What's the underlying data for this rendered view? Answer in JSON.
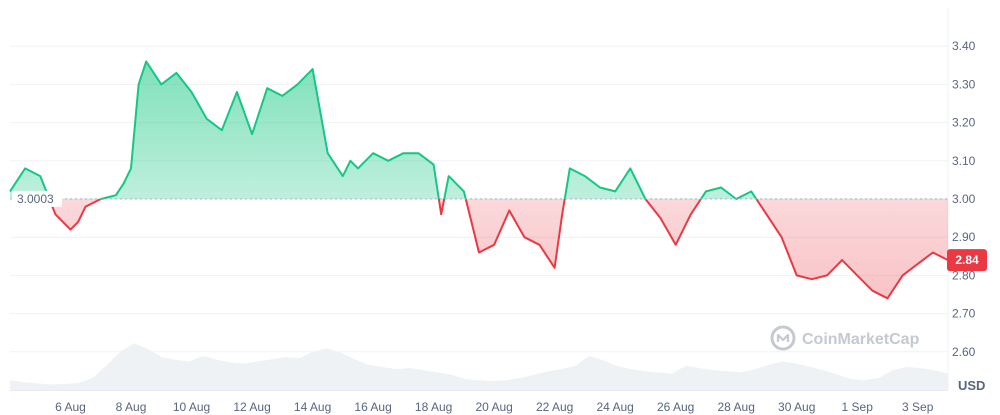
{
  "chart_data": {
    "type": "area",
    "unit_label": "USD",
    "watermark": "CoinMarketCap",
    "baseline": {
      "value": 3.0003,
      "label": "3.0003"
    },
    "current": {
      "value": 2.84,
      "label": "2.84"
    },
    "ylim": [
      2.5,
      3.5
    ],
    "xlim": [
      "2024-08-04",
      "2024-09-04"
    ],
    "y_ticks": [
      "2.60",
      "2.70",
      "2.80",
      "2.90",
      "3.00",
      "3.10",
      "3.20",
      "3.30",
      "3.40"
    ],
    "x_ticks": [
      "6 Aug",
      "8 Aug",
      "10 Aug",
      "12 Aug",
      "14 Aug",
      "16 Aug",
      "18 Aug",
      "20 Aug",
      "22 Aug",
      "24 Aug",
      "26 Aug",
      "28 Aug",
      "30 Aug",
      "1 Sep",
      "3 Sep"
    ],
    "grid": true,
    "colors": {
      "up": "#16c784",
      "down": "#ea3943",
      "grid": "#eff2f5",
      "volume": "#eff2f5",
      "text": "#58667e"
    },
    "series": [
      {
        "x": [
          "2024-08-04",
          "2024-08-04T12:00",
          "2024-08-05",
          "2024-08-05T12:00",
          "2024-08-06",
          "2024-08-06T06:00",
          "2024-08-06T12:00",
          "2024-08-07",
          "2024-08-07T12:00",
          "2024-08-07T18:00",
          "2024-08-08",
          "2024-08-08T06:00",
          "2024-08-08T12:00",
          "2024-08-09",
          "2024-08-09T12:00",
          "2024-08-10",
          "2024-08-10T12:00",
          "2024-08-11",
          "2024-08-11T12:00",
          "2024-08-12",
          "2024-08-12T12:00",
          "2024-08-13",
          "2024-08-13T12:00",
          "2024-08-14",
          "2024-08-14T12:00",
          "2024-08-15",
          "2024-08-15T06:00",
          "2024-08-15T12:00",
          "2024-08-16",
          "2024-08-16T12:00",
          "2024-08-17",
          "2024-08-17T12:00",
          "2024-08-18",
          "2024-08-18T06:00",
          "2024-08-18T12:00",
          "2024-08-19",
          "2024-08-19T12:00",
          "2024-08-20",
          "2024-08-20T12:00",
          "2024-08-21",
          "2024-08-21T12:00",
          "2024-08-22",
          "2024-08-22T06:00",
          "2024-08-22T12:00",
          "2024-08-23",
          "2024-08-23T12:00",
          "2024-08-24",
          "2024-08-24T12:00",
          "2024-08-25",
          "2024-08-25T12:00",
          "2024-08-26",
          "2024-08-26T12:00",
          "2024-08-27",
          "2024-08-27T12:00",
          "2024-08-28",
          "2024-08-28T12:00",
          "2024-08-29",
          "2024-08-29T12:00",
          "2024-08-30",
          "2024-08-30T12:00",
          "2024-08-31",
          "2024-08-31T12:00",
          "2024-09-01",
          "2024-09-01T12:00",
          "2024-09-02",
          "2024-09-02T12:00",
          "2024-09-03",
          "2024-09-03T12:00",
          "2024-09-04"
        ],
        "values": [
          3.02,
          3.08,
          3.06,
          2.96,
          2.92,
          2.94,
          2.98,
          3.0,
          3.01,
          3.04,
          3.08,
          3.3,
          3.36,
          3.3,
          3.33,
          3.28,
          3.21,
          3.18,
          3.28,
          3.17,
          3.29,
          3.27,
          3.3,
          3.34,
          3.12,
          3.06,
          3.1,
          3.08,
          3.12,
          3.1,
          3.12,
          3.12,
          3.09,
          2.96,
          3.06,
          3.02,
          2.86,
          2.88,
          2.97,
          2.9,
          2.88,
          2.82,
          2.96,
          3.08,
          3.06,
          3.03,
          3.02,
          3.08,
          3.0,
          2.95,
          2.88,
          2.96,
          3.02,
          3.03,
          3.0,
          3.02,
          2.96,
          2.9,
          2.8,
          2.79,
          2.8,
          2.84,
          2.8,
          2.76,
          2.74,
          2.8,
          2.83,
          2.86,
          2.84
        ]
      }
    ],
    "volume": [
      0.18,
      0.14,
      0.12,
      0.1,
      0.11,
      0.13,
      0.22,
      0.45,
      0.7,
      0.85,
      0.75,
      0.6,
      0.55,
      0.52,
      0.62,
      0.55,
      0.5,
      0.48,
      0.52,
      0.56,
      0.6,
      0.58,
      0.7,
      0.76,
      0.68,
      0.56,
      0.46,
      0.42,
      0.38,
      0.4,
      0.36,
      0.32,
      0.28,
      0.2,
      0.18,
      0.16,
      0.18,
      0.22,
      0.28,
      0.34,
      0.38,
      0.44,
      0.62,
      0.54,
      0.44,
      0.38,
      0.34,
      0.32,
      0.3,
      0.44,
      0.4,
      0.36,
      0.34,
      0.32,
      0.38,
      0.46,
      0.52,
      0.48,
      0.42,
      0.36,
      0.28,
      0.2,
      0.18,
      0.22,
      0.36,
      0.42,
      0.4,
      0.36,
      0.3
    ]
  }
}
